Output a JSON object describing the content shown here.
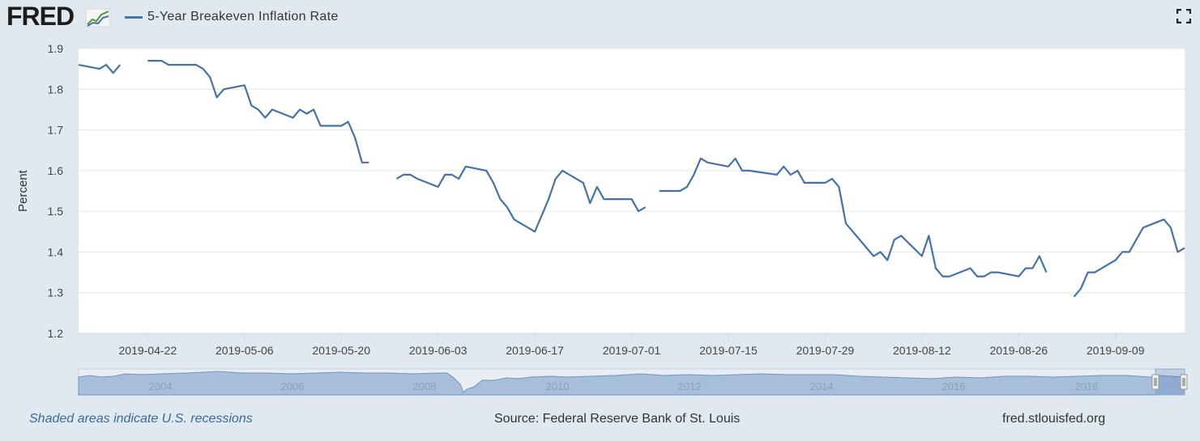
{
  "header": {
    "logo_text": "FRED",
    "series_label": "5-Year Breakeven Inflation Rate",
    "series_color": "#4572a7"
  },
  "icons": {
    "logo_graph": "line-graph-icon",
    "fullscreen": "fullscreen-icon"
  },
  "footer": {
    "recession_note": "Shaded areas indicate U.S. recessions",
    "source": "Source: Federal Reserve Bank of St. Louis",
    "url": "fred.stlouisfed.org"
  },
  "navigator": {
    "year_labels": [
      "2004",
      "2006",
      "2008",
      "2010",
      "2012",
      "2014",
      "2016",
      "2018"
    ]
  },
  "chart_data": {
    "type": "line",
    "ylabel": "Percent",
    "ylim": [
      1.2,
      1.9
    ],
    "yticks": [
      "1.2",
      "1.3",
      "1.4",
      "1.5",
      "1.6",
      "1.7",
      "1.8",
      "1.9"
    ],
    "xlim": [
      "2019-04-12",
      "2019-09-19"
    ],
    "xticks": [
      "2019-04-22",
      "2019-05-06",
      "2019-05-20",
      "2019-06-03",
      "2019-06-17",
      "2019-07-01",
      "2019-07-15",
      "2019-07-29",
      "2019-08-12",
      "2019-08-26",
      "2019-09-09"
    ],
    "grid": true,
    "legend": "top-left",
    "series": [
      {
        "name": "5-Year Breakeven Inflation Rate",
        "color": "#4572a7",
        "segments": [
          [
            [
              "2019-04-12",
              1.86
            ],
            [
              "2019-04-15",
              1.85
            ],
            [
              "2019-04-16",
              1.86
            ],
            [
              "2019-04-17",
              1.84
            ],
            [
              "2019-04-18",
              1.86
            ]
          ],
          [
            [
              "2019-04-22",
              1.87
            ],
            [
              "2019-04-24",
              1.87
            ],
            [
              "2019-04-25",
              1.86
            ],
            [
              "2019-04-29",
              1.86
            ],
            [
              "2019-04-30",
              1.85
            ],
            [
              "2019-05-01",
              1.83
            ],
            [
              "2019-05-02",
              1.78
            ],
            [
              "2019-05-03",
              1.8
            ],
            [
              "2019-05-06",
              1.81
            ],
            [
              "2019-05-07",
              1.76
            ],
            [
              "2019-05-08",
              1.75
            ],
            [
              "2019-05-09",
              1.73
            ],
            [
              "2019-05-10",
              1.75
            ],
            [
              "2019-05-13",
              1.73
            ],
            [
              "2019-05-14",
              1.75
            ],
            [
              "2019-05-15",
              1.74
            ],
            [
              "2019-05-16",
              1.75
            ],
            [
              "2019-05-17",
              1.71
            ],
            [
              "2019-05-20",
              1.71
            ],
            [
              "2019-05-21",
              1.72
            ],
            [
              "2019-05-22",
              1.68
            ],
            [
              "2019-05-23",
              1.62
            ],
            [
              "2019-05-24",
              1.62
            ]
          ],
          [
            [
              "2019-05-28",
              1.58
            ],
            [
              "2019-05-29",
              1.59
            ],
            [
              "2019-05-30",
              1.59
            ],
            [
              "2019-05-31",
              1.58
            ],
            [
              "2019-06-03",
              1.56
            ],
            [
              "2019-06-04",
              1.59
            ],
            [
              "2019-06-05",
              1.59
            ],
            [
              "2019-06-06",
              1.58
            ],
            [
              "2019-06-07",
              1.61
            ],
            [
              "2019-06-10",
              1.6
            ],
            [
              "2019-06-11",
              1.57
            ],
            [
              "2019-06-12",
              1.53
            ],
            [
              "2019-06-13",
              1.51
            ],
            [
              "2019-06-14",
              1.48
            ],
            [
              "2019-06-17",
              1.45
            ],
            [
              "2019-06-19",
              1.53
            ],
            [
              "2019-06-20",
              1.58
            ],
            [
              "2019-06-21",
              1.6
            ],
            [
              "2019-06-24",
              1.57
            ],
            [
              "2019-06-25",
              1.52
            ],
            [
              "2019-06-26",
              1.56
            ],
            [
              "2019-06-27",
              1.53
            ],
            [
              "2019-07-01",
              1.53
            ],
            [
              "2019-07-02",
              1.5
            ],
            [
              "2019-07-03",
              1.51
            ]
          ],
          [
            [
              "2019-07-05",
              1.55
            ],
            [
              "2019-07-08",
              1.55
            ],
            [
              "2019-07-09",
              1.56
            ],
            [
              "2019-07-10",
              1.59
            ],
            [
              "2019-07-11",
              1.63
            ],
            [
              "2019-07-12",
              1.62
            ],
            [
              "2019-07-15",
              1.61
            ],
            [
              "2019-07-16",
              1.63
            ],
            [
              "2019-07-17",
              1.6
            ],
            [
              "2019-07-18",
              1.6
            ],
            [
              "2019-07-22",
              1.59
            ],
            [
              "2019-07-23",
              1.61
            ],
            [
              "2019-07-24",
              1.59
            ],
            [
              "2019-07-25",
              1.6
            ],
            [
              "2019-07-26",
              1.57
            ],
            [
              "2019-07-29",
              1.57
            ],
            [
              "2019-07-30",
              1.58
            ],
            [
              "2019-07-31",
              1.56
            ],
            [
              "2019-08-01",
              1.47
            ],
            [
              "2019-08-05",
              1.39
            ],
            [
              "2019-08-06",
              1.4
            ],
            [
              "2019-08-07",
              1.38
            ],
            [
              "2019-08-08",
              1.43
            ],
            [
              "2019-08-09",
              1.44
            ],
            [
              "2019-08-12",
              1.39
            ],
            [
              "2019-08-13",
              1.44
            ],
            [
              "2019-08-14",
              1.36
            ],
            [
              "2019-08-15",
              1.34
            ],
            [
              "2019-08-16",
              1.34
            ],
            [
              "2019-08-19",
              1.36
            ],
            [
              "2019-08-20",
              1.34
            ],
            [
              "2019-08-21",
              1.34
            ],
            [
              "2019-08-22",
              1.35
            ],
            [
              "2019-08-23",
              1.35
            ],
            [
              "2019-08-26",
              1.34
            ],
            [
              "2019-08-27",
              1.36
            ],
            [
              "2019-08-28",
              1.36
            ],
            [
              "2019-08-29",
              1.39
            ],
            [
              "2019-08-30",
              1.35
            ]
          ],
          [
            [
              "2019-09-03",
              1.29
            ],
            [
              "2019-09-04",
              1.31
            ],
            [
              "2019-09-05",
              1.35
            ],
            [
              "2019-09-06",
              1.35
            ],
            [
              "2019-09-09",
              1.38
            ],
            [
              "2019-09-10",
              1.4
            ],
            [
              "2019-09-11",
              1.4
            ],
            [
              "2019-09-12",
              1.43
            ],
            [
              "2019-09-13",
              1.46
            ],
            [
              "2019-09-16",
              1.48
            ],
            [
              "2019-09-17",
              1.46
            ],
            [
              "2019-09-18",
              1.4
            ],
            [
              "2019-09-19",
              1.41
            ]
          ]
        ]
      }
    ]
  }
}
